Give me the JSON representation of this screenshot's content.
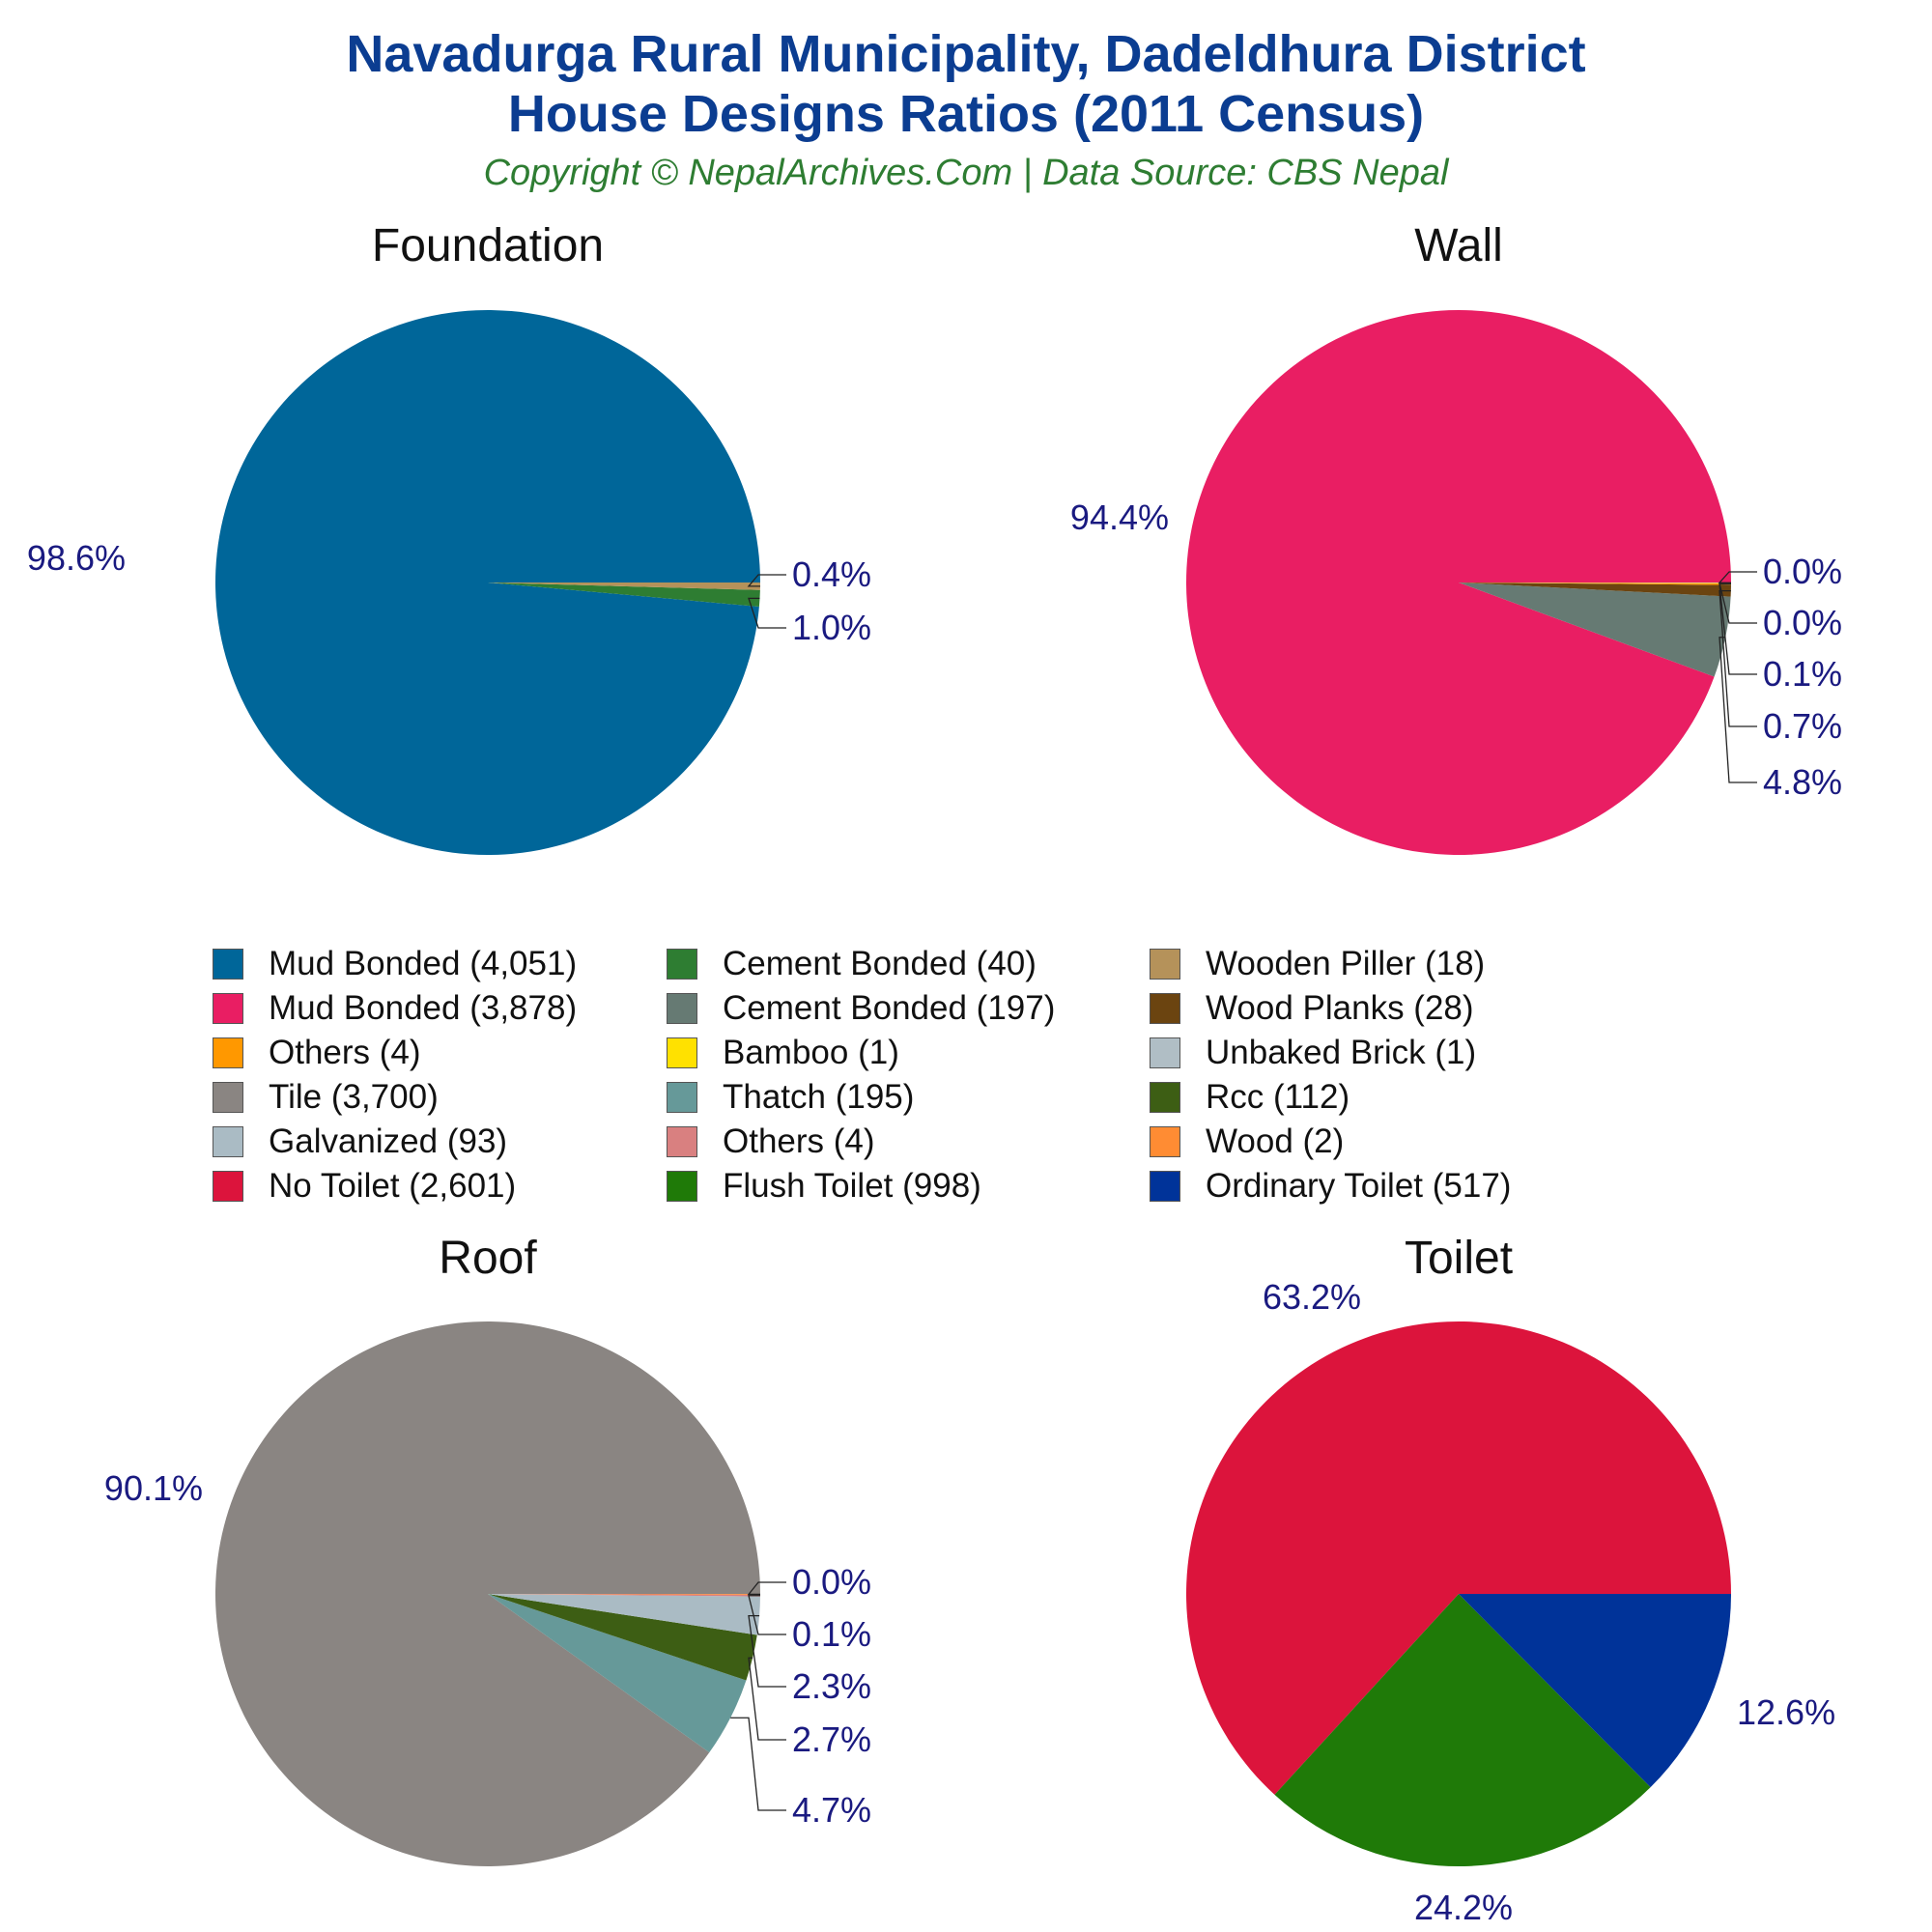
{
  "title_line1": "Navadurga Rural Municipality, Dadeldhura District",
  "title_line2": "House Designs Ratios (2011 Census)",
  "subtitle": "Copyright © NepalArchives.Com | Data Source: CBS Nepal",
  "legend": [
    {
      "label": "Mud Bonded (4,051)",
      "color": "#006699"
    },
    {
      "label": "Cement Bonded (40)",
      "color": "#2e7d32"
    },
    {
      "label": "Wooden Piller (18)",
      "color": "#b5925a"
    },
    {
      "label": "Mud Bonded (3,878)",
      "color": "#e91e63"
    },
    {
      "label": "Cement Bonded (197)",
      "color": "#667a73"
    },
    {
      "label": "Wood Planks (28)",
      "color": "#6b4410"
    },
    {
      "label": "Others (4)",
      "color": "#ff9800"
    },
    {
      "label": "Bamboo (1)",
      "color": "#ffe100"
    },
    {
      "label": "Unbaked Brick (1)",
      "color": "#b0bec5"
    },
    {
      "label": "Tile (3,700)",
      "color": "#8a8582"
    },
    {
      "label": "Thatch (195)",
      "color": "#669999"
    },
    {
      "label": "Rcc (112)",
      "color": "#3d5e14"
    },
    {
      "label": "Galvanized (93)",
      "color": "#aabbc4"
    },
    {
      "label": "Others (4)",
      "color": "#d98080"
    },
    {
      "label": "Wood (2)",
      "color": "#ff8c33"
    },
    {
      "label": "No Toilet (2,601)",
      "color": "#dc143c"
    },
    {
      "label": "Flush Toilet (998)",
      "color": "#1f7a08"
    },
    {
      "label": "Ordinary Toilet (517)",
      "color": "#003399"
    }
  ],
  "chart_data": [
    {
      "type": "pie",
      "title": "Foundation",
      "slices": [
        {
          "name": "Mud Bonded",
          "value": 4051,
          "color": "#006699",
          "label": "98.6%"
        },
        {
          "name": "Cement Bonded",
          "value": 40,
          "color": "#2e7d32",
          "label": "1.0%"
        },
        {
          "name": "Wooden Piller",
          "value": 18,
          "color": "#b5925a",
          "label": "0.4%"
        }
      ]
    },
    {
      "type": "pie",
      "title": "Wall",
      "slices": [
        {
          "name": "Mud Bonded",
          "value": 3878,
          "color": "#e91e63",
          "label": "94.4%"
        },
        {
          "name": "Cement Bonded",
          "value": 197,
          "color": "#667a73",
          "label": "4.8%"
        },
        {
          "name": "Wood Planks",
          "value": 28,
          "color": "#6b4410",
          "label": "0.7%"
        },
        {
          "name": "Others",
          "value": 4,
          "color": "#ff9800",
          "label": "0.1%"
        },
        {
          "name": "Bamboo",
          "value": 1,
          "color": "#ffe100",
          "label": "0.0%"
        },
        {
          "name": "Unbaked Brick",
          "value": 1,
          "color": "#b0bec5",
          "label": "0.0%"
        }
      ]
    },
    {
      "type": "pie",
      "title": "Roof",
      "slices": [
        {
          "name": "Tile",
          "value": 3700,
          "color": "#8a8582",
          "label": "90.1%"
        },
        {
          "name": "Thatch",
          "value": 195,
          "color": "#669999",
          "label": "4.7%"
        },
        {
          "name": "Rcc",
          "value": 112,
          "color": "#3d5e14",
          "label": "2.7%"
        },
        {
          "name": "Galvanized",
          "value": 93,
          "color": "#aabbc4",
          "label": "2.3%"
        },
        {
          "name": "Others",
          "value": 4,
          "color": "#d98080",
          "label": "0.1%"
        },
        {
          "name": "Wood",
          "value": 2,
          "color": "#ff8c33",
          "label": "0.0%"
        }
      ]
    },
    {
      "type": "pie",
      "title": "Toilet",
      "slices": [
        {
          "name": "No Toilet",
          "value": 2601,
          "color": "#dc143c",
          "label": "63.2%"
        },
        {
          "name": "Flush Toilet",
          "value": 998,
          "color": "#1f7a08",
          "label": "24.2%"
        },
        {
          "name": "Ordinary Toilet",
          "value": 517,
          "color": "#003399",
          "label": "12.6%"
        }
      ]
    }
  ]
}
